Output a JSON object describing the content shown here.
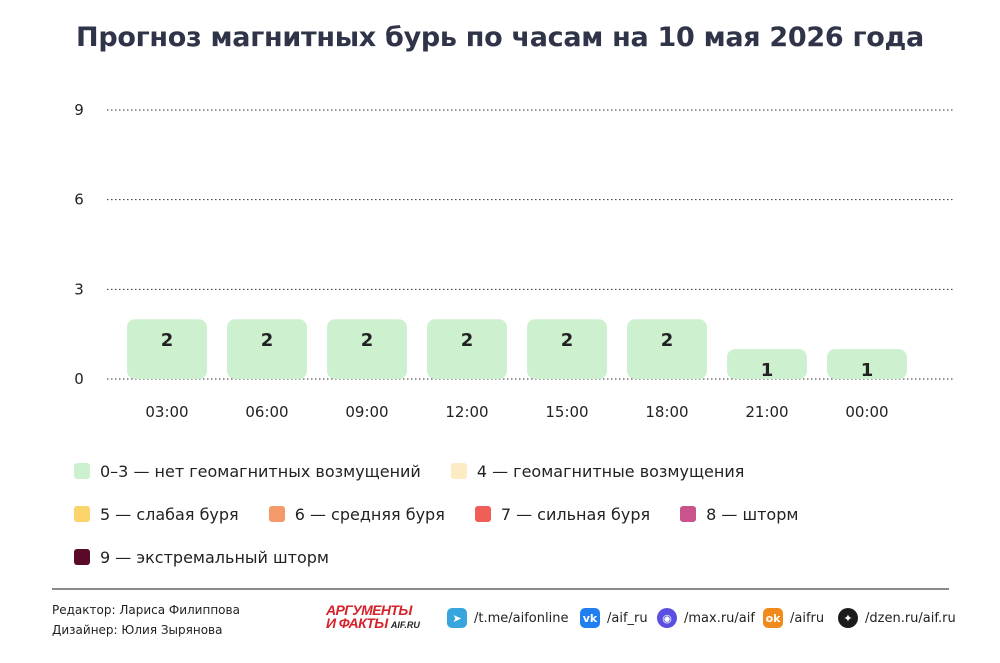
{
  "title": "Прогноз магнитных бурь по часам на 10 мая 2026 года",
  "chart_data": {
    "type": "bar",
    "categories": [
      "03:00",
      "06:00",
      "09:00",
      "12:00",
      "15:00",
      "18:00",
      "21:00",
      "00:00"
    ],
    "values": [
      2,
      2,
      2,
      2,
      2,
      2,
      1,
      1
    ],
    "yticks": [
      0,
      3,
      6,
      9
    ],
    "ylim": [
      0,
      9
    ],
    "grid": true,
    "bar_color": "#cdf0cf",
    "legend_position": "bottom"
  },
  "legend": [
    [
      {
        "label": "0–3 — нет геомагнитных возмущений",
        "color": "#cdf0cf"
      },
      {
        "label": "4 — геомагнитные возмущения",
        "color": "#fdebc4"
      }
    ],
    [
      {
        "label": "5 — слабая буря",
        "color": "#fbd46b"
      },
      {
        "label": "6 — средняя буря",
        "color": "#f59a6a"
      },
      {
        "label": "7 — сильная буря",
        "color": "#ef5f57"
      },
      {
        "label": "8 — шторм",
        "color": "#c9538a"
      }
    ],
    [
      {
        "label": "9 — экстремальный шторм",
        "color": "#5a0a28"
      }
    ]
  ],
  "footer": {
    "editor": "Редактор: Лариса Филиппова",
    "designer": "Дизайнер: Юлия Зырянова",
    "logo_line1": "АРГУМЕНТЫ",
    "logo_line2": "И ФАКТЫ",
    "logo_site": "AIF.RU",
    "socials": [
      {
        "label": "/t.me/aifonline",
        "icon": "telegram-icon",
        "color": "#37a6de",
        "glyph": "➤"
      },
      {
        "label": "/aif_ru",
        "icon": "vk-icon",
        "color": "#1f7ff0",
        "glyph": "vk"
      },
      {
        "label": "/max.ru/aif",
        "icon": "max-icon",
        "color": "#5a4fe0",
        "glyph": "◉"
      },
      {
        "label": "/aifru",
        "icon": "odnoklassniki-icon",
        "color": "#f08a1a",
        "glyph": "ok"
      },
      {
        "label": "/dzen.ru/aif.ru",
        "icon": "dzen-icon",
        "color": "#1b1b1b",
        "glyph": "✦"
      }
    ]
  }
}
